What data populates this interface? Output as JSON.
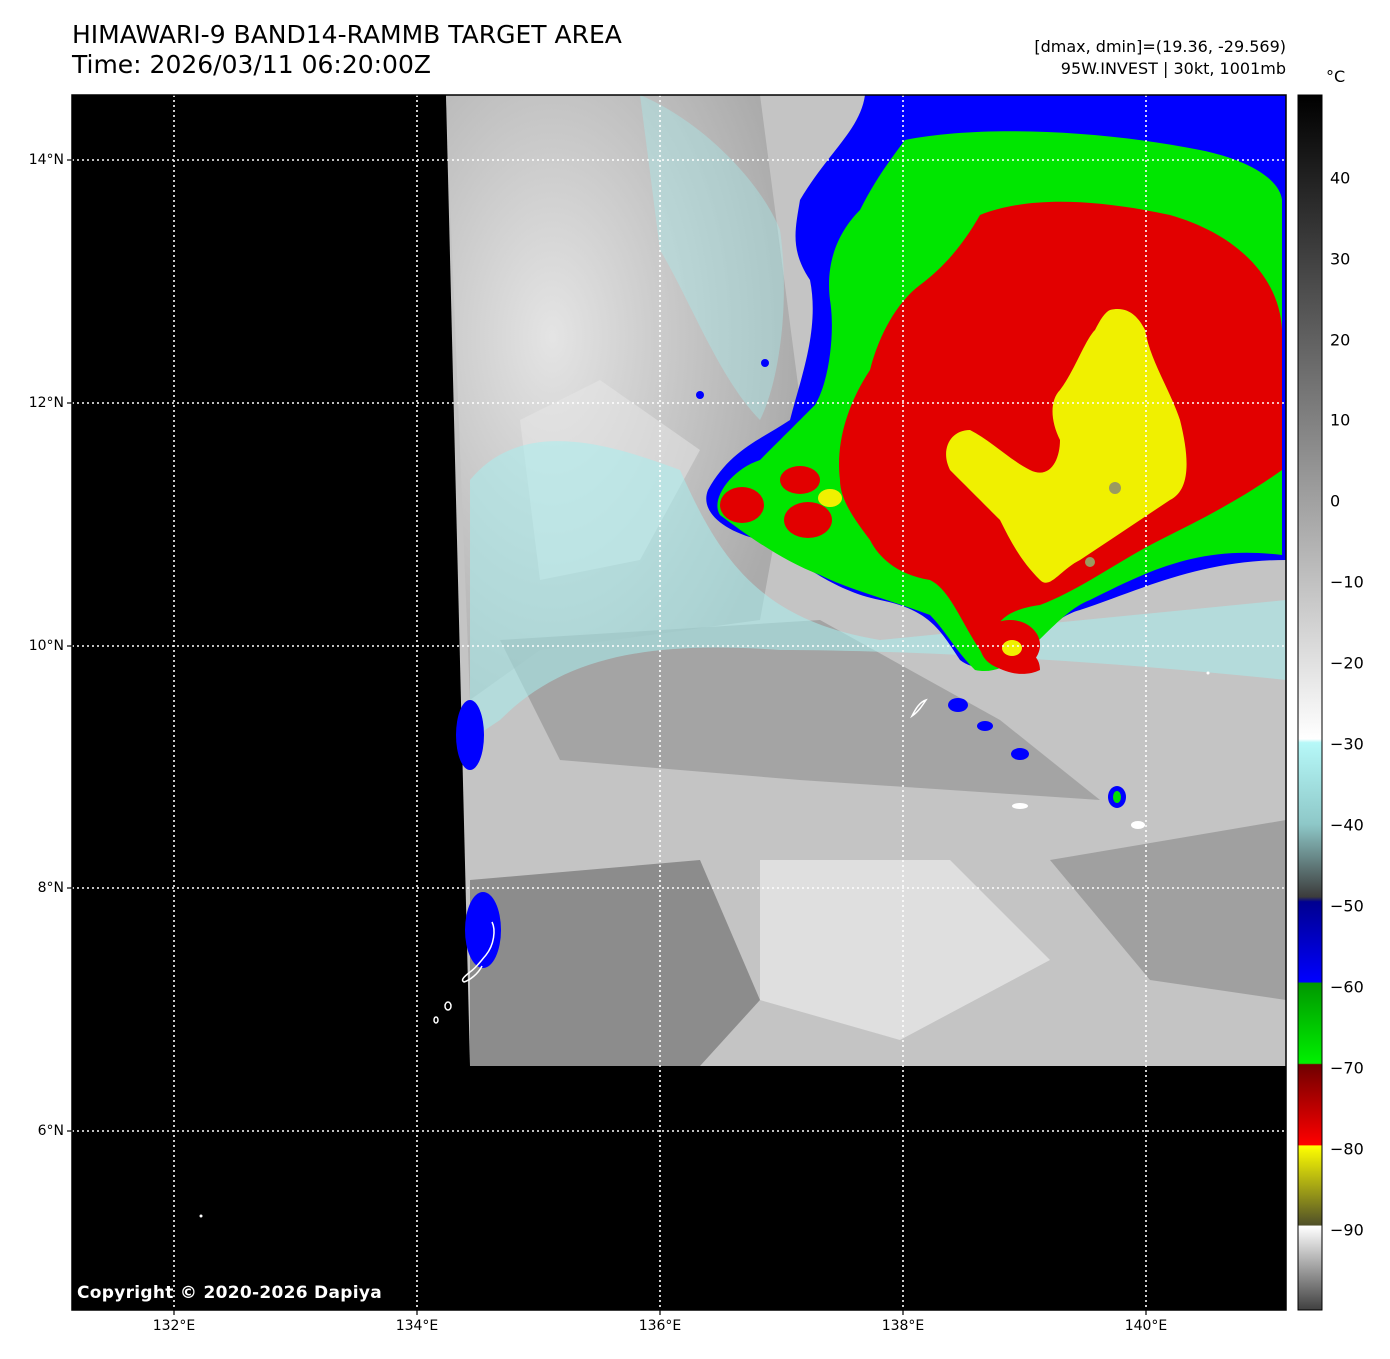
{
  "header": {
    "title_line1": "HIMAWARI-9 BAND14-RAMMB TARGET AREA",
    "title_line2": "Time: 2026/03/11 06:20:00Z",
    "info_line1": "[dmax, dmin]=(19.36, -29.569)",
    "info_line2": "95W.INVEST | 30kt, 1001mb"
  },
  "map": {
    "lat_labels": [
      {
        "text": "14°N",
        "value": 14
      },
      {
        "text": "12°N",
        "value": 12
      },
      {
        "text": "10°N",
        "value": 10
      },
      {
        "text": "8°N",
        "value": 8
      },
      {
        "text": "6°N",
        "value": 6
      }
    ],
    "lon_labels": [
      {
        "text": "132°E",
        "value": 132
      },
      {
        "text": "134°E",
        "value": 134
      },
      {
        "text": "136°E",
        "value": 136
      },
      {
        "text": "138°E",
        "value": 138
      },
      {
        "text": "140°E",
        "value": 140
      }
    ],
    "copyright": "Copyright © 2020-2026 Dapiya"
  },
  "colorbar": {
    "unit": "°C",
    "ticks": [
      "40",
      "30",
      "20",
      "10",
      "0",
      "−10",
      "−20",
      "−30",
      "−40",
      "−50",
      "−60",
      "−70",
      "−80",
      "−90"
    ],
    "tick_values": [
      40,
      30,
      20,
      10,
      0,
      -10,
      -20,
      -30,
      -40,
      -50,
      -60,
      -70,
      -80,
      -90
    ],
    "colors": {
      "warm_black": "#000000",
      "light_gray": "#e8e8e8",
      "cyan": "#aaf4f4",
      "blue": "#0000ff",
      "green": "#00e000",
      "red": "#e60000",
      "yellow": "#f0f000"
    }
  }
}
